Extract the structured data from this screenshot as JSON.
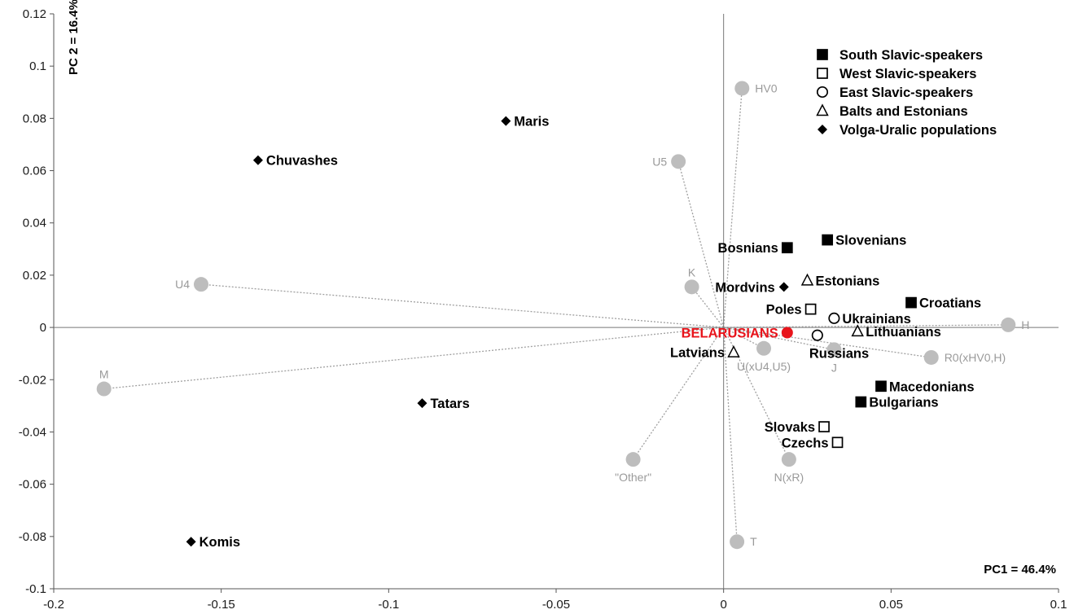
{
  "chart_data": {
    "type": "scatter",
    "xlim": [
      -0.2,
      0.1
    ],
    "ylim": [
      -0.1,
      0.12
    ],
    "x_ticks": [
      -0.2,
      -0.15,
      -0.1,
      -0.05,
      0,
      0.05,
      0.1
    ],
    "x_tick_labels": [
      "-0.2",
      "-0.15",
      "-0.1",
      "-0.05",
      "0",
      "0.05",
      "0.1"
    ],
    "y_ticks": [
      0.12,
      0.1,
      0.08,
      0.06,
      0.04,
      0.02,
      0,
      -0.02,
      -0.04,
      -0.06,
      -0.08,
      -0.1
    ],
    "y_tick_labels": [
      "0.12",
      "0.1",
      "0.08",
      "0.06",
      "0.04",
      "0.02",
      "0",
      "-0.02",
      "-0.04",
      "-0.06",
      "-0.08",
      "-0.1"
    ],
    "xlabel": "PC1 = 46.4%",
    "ylabel": "PC 2 = 16.4%",
    "grid": false,
    "legend_position": "top-right",
    "legend": [
      {
        "marker": "filled-square",
        "label": "South Slavic-speakers"
      },
      {
        "marker": "open-square",
        "label": "West Slavic-speakers"
      },
      {
        "marker": "open-circle",
        "label": "East Slavic-speakers"
      },
      {
        "marker": "open-triangle",
        "label": "Balts and Estonians"
      },
      {
        "marker": "filled-diamond",
        "label": "Volga-Uralic populations"
      }
    ],
    "populations": [
      {
        "label": "Maris",
        "x": -0.065,
        "y": 0.079,
        "marker": "filled-diamond",
        "label_side": "right"
      },
      {
        "label": "Chuvashes",
        "x": -0.139,
        "y": 0.064,
        "marker": "filled-diamond",
        "label_side": "right"
      },
      {
        "label": "Tatars",
        "x": -0.09,
        "y": -0.029,
        "marker": "filled-diamond",
        "label_side": "right"
      },
      {
        "label": "Komis",
        "x": -0.159,
        "y": -0.082,
        "marker": "filled-diamond",
        "label_side": "right"
      },
      {
        "label": "Mordvins",
        "x": 0.018,
        "y": 0.0155,
        "marker": "filled-diamond",
        "label_side": "left"
      },
      {
        "label": "Bosnians",
        "x": 0.019,
        "y": 0.0305,
        "marker": "filled-square",
        "label_side": "left"
      },
      {
        "label": "Slovenians",
        "x": 0.031,
        "y": 0.0335,
        "marker": "filled-square",
        "label_side": "right"
      },
      {
        "label": "Croatians",
        "x": 0.056,
        "y": 0.0095,
        "marker": "filled-square",
        "label_side": "right"
      },
      {
        "label": "Macedonians",
        "x": 0.047,
        "y": -0.0225,
        "marker": "filled-square",
        "label_side": "right"
      },
      {
        "label": "Bulgarians",
        "x": 0.041,
        "y": -0.0285,
        "marker": "filled-square",
        "label_side": "right"
      },
      {
        "label": "Poles",
        "x": 0.026,
        "y": 0.007,
        "marker": "open-square",
        "label_side": "left"
      },
      {
        "label": "Slovaks",
        "x": 0.03,
        "y": -0.038,
        "marker": "open-square",
        "label_side": "left"
      },
      {
        "label": "Czechs",
        "x": 0.034,
        "y": -0.044,
        "marker": "open-square",
        "label_side": "left"
      },
      {
        "label": "Ukrainians",
        "x": 0.033,
        "y": 0.0035,
        "marker": "open-circle",
        "label_side": "right"
      },
      {
        "label": "Russians",
        "x": 0.028,
        "y": -0.003,
        "marker": "open-circle",
        "label_side": "below"
      },
      {
        "label": "Estonians",
        "x": 0.025,
        "y": 0.018,
        "marker": "open-triangle",
        "label_side": "right"
      },
      {
        "label": "Lithuanians",
        "x": 0.04,
        "y": -0.0015,
        "marker": "open-triangle",
        "label_side": "right"
      },
      {
        "label": "Latvians",
        "x": 0.003,
        "y": -0.0095,
        "marker": "open-triangle",
        "label_side": "left"
      },
      {
        "label": "BELARUSIANS",
        "x": 0.019,
        "y": -0.002,
        "marker": "red-dot",
        "label_side": "left"
      }
    ],
    "loadings": [
      {
        "label": "HV0",
        "x": 0.0055,
        "y": 0.0915,
        "label_side": "right"
      },
      {
        "label": "U5",
        "x": -0.0135,
        "y": 0.0635,
        "label_side": "left"
      },
      {
        "label": "U4",
        "x": -0.156,
        "y": 0.0165,
        "label_side": "left"
      },
      {
        "label": "K",
        "x": -0.0095,
        "y": 0.0155,
        "label_side": "above"
      },
      {
        "label": "H",
        "x": 0.085,
        "y": 0.001,
        "label_side": "right"
      },
      {
        "label": "R0(xHV0,H)",
        "x": 0.062,
        "y": -0.0115,
        "label_side": "right"
      },
      {
        "label": "J",
        "x": 0.033,
        "y": -0.0085,
        "label_side": "below"
      },
      {
        "label": "U(xU4,U5)",
        "x": 0.012,
        "y": -0.008,
        "label_side": "below"
      },
      {
        "label": "M",
        "x": -0.185,
        "y": -0.0235,
        "label_side": "above"
      },
      {
        "label": "\"Other\"",
        "x": -0.027,
        "y": -0.0505,
        "label_side": "below"
      },
      {
        "label": "N(xR)",
        "x": 0.0195,
        "y": -0.0505,
        "label_side": "below"
      },
      {
        "label": "T",
        "x": 0.004,
        "y": -0.082,
        "label_side": "right"
      }
    ],
    "colors": {
      "marker": "#000000",
      "loading_dot": "#bdbdbd",
      "loading_line": "#a0a0a0",
      "loading_text": "#9a9a9a",
      "highlight": "#e8141b"
    }
  }
}
